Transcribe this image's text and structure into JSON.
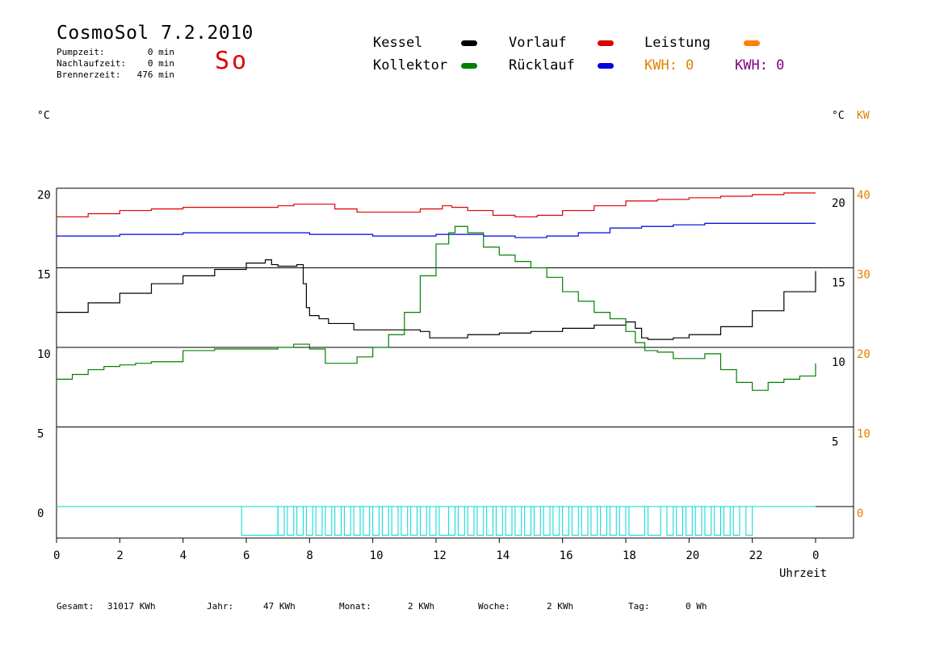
{
  "header": {
    "title": "CosmoSol 7.2.2010",
    "day": "So",
    "info": [
      {
        "label": "Pumpzeit:",
        "value": "0 min"
      },
      {
        "label": "Nachlaufzeit:",
        "value": "0 min"
      },
      {
        "label": "Brennerzeit:",
        "value": "476 min"
      }
    ]
  },
  "legend": {
    "kessel": {
      "label": "Kessel",
      "color": "#000000"
    },
    "vorlauf": {
      "label": "Vorlauf",
      "color": "#e00000"
    },
    "leistung": {
      "label": "Leistung",
      "color": "#ff8000"
    },
    "kollektor": {
      "label": "Kollektor",
      "color": "#008000"
    },
    "ruecklauf": {
      "label": "Rücklauf",
      "color": "#0000e0"
    },
    "kwh_orange": {
      "label": "KWH: 0",
      "color": "#e08000"
    },
    "kwh_purple": {
      "label": "KWH: 0",
      "color": "#800080"
    }
  },
  "units": {
    "left": "°C",
    "right": "°C",
    "right_kw": "KW"
  },
  "footer": [
    {
      "label": "Gesamt:",
      "value": "31017 KWh"
    },
    {
      "label": "Jahr:",
      "value": "47 KWh"
    },
    {
      "label": "Monat:",
      "value": "2 KWh"
    },
    {
      "label": "Woche:",
      "value": "2 KWh"
    },
    {
      "label": "Tag:",
      "value": "0 Wh"
    }
  ],
  "chart_data": {
    "type": "line",
    "xlabel": "Uhrzeit",
    "x_ticks": [
      "0",
      "2",
      "4",
      "6",
      "8",
      "10",
      "12",
      "14",
      "16",
      "18",
      "20",
      "22",
      "0"
    ],
    "xlim": [
      0,
      24
    ],
    "ylim": [
      -2,
      20
    ],
    "y_ticks_left": [
      20,
      15,
      10,
      5,
      0
    ],
    "y_ticks_right_c": [
      20,
      15,
      10,
      5
    ],
    "y_ticks_right_kw": [
      40,
      30,
      20,
      10,
      0
    ],
    "grid": "horizontal",
    "series": [
      {
        "name": "Vorlauf",
        "color": "#e00000",
        "x": [
          0,
          1,
          2,
          3,
          4,
          5,
          6,
          7,
          7.5,
          8,
          8.8,
          9.5,
          10.5,
          11.5,
          12.2,
          12.5,
          13,
          13.8,
          14.5,
          15.2,
          16,
          17,
          18,
          19,
          20,
          21,
          22,
          23,
          24
        ],
        "y": [
          18.2,
          18.4,
          18.6,
          18.7,
          18.8,
          18.8,
          18.8,
          18.9,
          19.0,
          19.0,
          18.7,
          18.5,
          18.5,
          18.7,
          18.9,
          18.8,
          18.6,
          18.3,
          18.2,
          18.3,
          18.6,
          18.9,
          19.2,
          19.3,
          19.4,
          19.5,
          19.6,
          19.7,
          19.7
        ]
      },
      {
        "name": "Rücklauf",
        "color": "#0000e0",
        "x": [
          0,
          2,
          4,
          6,
          8,
          10,
          12,
          13.5,
          14.5,
          15.5,
          16.5,
          17.5,
          18.5,
          19.5,
          20.5,
          22,
          24
        ],
        "y": [
          17.0,
          17.1,
          17.2,
          17.2,
          17.1,
          17.0,
          17.1,
          17.0,
          16.9,
          17.0,
          17.2,
          17.5,
          17.6,
          17.7,
          17.8,
          17.8,
          17.8
        ],
        "label": "Rücklauf"
      },
      {
        "name": "Kessel",
        "color": "#000000",
        "x": [
          0,
          1,
          2,
          3,
          4,
          5,
          6,
          6.6,
          6.8,
          7.0,
          7.6,
          7.8,
          7.9,
          8.0,
          8.3,
          8.6,
          9.3,
          9.4,
          10.5,
          11.5,
          11.8,
          12.5,
          13.0,
          14.0,
          15.0,
          16.0,
          17.0,
          18.0,
          18.3,
          18.5,
          18.7,
          19.5,
          20.0,
          21.0,
          22.0,
          23.0,
          24.0
        ],
        "y": [
          12.2,
          12.8,
          13.4,
          14.0,
          14.5,
          14.9,
          15.3,
          15.5,
          15.2,
          15.1,
          15.2,
          14.0,
          12.5,
          12.0,
          11.8,
          11.5,
          11.5,
          11.1,
          11.1,
          11.0,
          10.6,
          10.6,
          10.8,
          10.9,
          11.0,
          11.2,
          11.4,
          11.6,
          11.2,
          10.6,
          10.5,
          10.6,
          10.8,
          11.3,
          12.3,
          13.5,
          14.8
        ]
      },
      {
        "name": "Kollektor",
        "color": "#008000",
        "x": [
          0,
          0.5,
          1,
          1.5,
          2,
          2.5,
          3,
          3.5,
          4,
          4.5,
          5,
          5.5,
          6,
          6.5,
          7,
          7.5,
          8,
          8.5,
          9,
          9.5,
          10,
          10.5,
          11,
          11.5,
          12,
          12.4,
          12.6,
          13,
          13.5,
          14,
          14.5,
          15,
          15.5,
          16,
          16.5,
          17,
          17.5,
          18,
          18.3,
          18.6,
          19,
          19.5,
          20,
          20.5,
          21,
          21.5,
          22,
          22.5,
          23,
          23.5,
          24
        ],
        "y": [
          8.0,
          8.3,
          8.6,
          8.8,
          8.9,
          9.0,
          9.1,
          9.1,
          9.8,
          9.8,
          9.9,
          9.9,
          9.9,
          9.9,
          10.0,
          10.2,
          9.9,
          9.0,
          9.0,
          9.4,
          10.0,
          10.8,
          12.2,
          14.5,
          16.5,
          17.2,
          17.6,
          17.2,
          16.3,
          15.8,
          15.4,
          15.0,
          14.4,
          13.5,
          12.9,
          12.2,
          11.8,
          11.0,
          10.3,
          9.8,
          9.7,
          9.3,
          9.3,
          9.6,
          8.6,
          7.8,
          7.3,
          7.8,
          8.0,
          8.2,
          9.0
        ]
      },
      {
        "name": "Leistung",
        "color": "#00d8d8",
        "x": [
          0,
          24
        ],
        "y": [
          0,
          0
        ],
        "pulses_x": [
          5.85,
          7.0,
          7.3,
          7.6,
          7.9,
          8.2,
          8.5,
          8.8,
          9.1,
          9.4,
          9.7,
          10.0,
          10.3,
          10.6,
          10.9,
          11.2,
          11.5,
          11.8,
          12.1,
          12.4,
          12.7,
          13.0,
          13.3,
          13.6,
          13.9,
          14.2,
          14.5,
          14.8,
          15.1,
          15.4,
          15.7,
          16.0,
          16.3,
          16.6,
          16.9,
          17.2,
          17.5,
          17.8,
          18.1,
          18.7,
          19.3,
          19.6,
          19.9,
          20.2,
          20.5,
          20.8,
          21.1,
          21.4,
          21.8
        ],
        "pulse_widths": [
          1.15,
          0.2,
          0.2,
          0.2,
          0.2,
          0.2,
          0.2,
          0.2,
          0.2,
          0.2,
          0.2,
          0.2,
          0.2,
          0.2,
          0.2,
          0.2,
          0.2,
          0.2,
          0.5,
          0.2,
          0.2,
          0.2,
          0.2,
          0.2,
          0.2,
          0.2,
          0.2,
          0.2,
          0.2,
          0.2,
          0.2,
          0.2,
          0.2,
          0.2,
          0.2,
          0.2,
          0.2,
          0.2,
          0.5,
          0.4,
          0.2,
          0.2,
          0.2,
          0.2,
          0.2,
          0.2,
          0.2,
          0.2,
          0.2
        ],
        "pulse_height": -1.8
      }
    ]
  }
}
